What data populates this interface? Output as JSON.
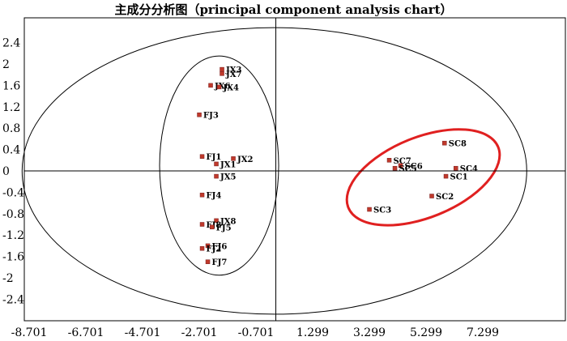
{
  "chart_data": {
    "type": "scatter",
    "title": "主成分分析图（principal component analysis chart）",
    "xlabel": "",
    "ylabel": "",
    "xlim": [
      -8.701,
      9.299
    ],
    "ylim": [
      -2.8,
      2.8
    ],
    "x_ticks": [
      "-8.701",
      "-6.701",
      "-4.701",
      "-2.701",
      "-0.701",
      "1.299",
      "3.299",
      "5.299",
      "7.299"
    ],
    "x_tick_values": [
      -8.701,
      -6.701,
      -4.701,
      -2.701,
      -0.701,
      1.299,
      3.299,
      5.299,
      7.299
    ],
    "y_ticks": [
      "2.4",
      "2",
      "1.6",
      "1.2",
      "0.8",
      "0.4",
      "0",
      "-0.4",
      "-0.8",
      "-1.2",
      "-1.6",
      "-2",
      "-2.4"
    ],
    "y_tick_values": [
      2.4,
      2.0,
      1.6,
      1.2,
      0.8,
      0.4,
      0,
      -0.4,
      -0.8,
      -1.2,
      -1.6,
      -2.0,
      -2.4
    ],
    "grid": false,
    "legend": "none",
    "marker_color": "#c0392b",
    "points": [
      {
        "label": "JX3",
        "x": -1.9,
        "y": 1.9
      },
      {
        "label": "JX7",
        "x": -1.9,
        "y": 1.82
      },
      {
        "label": "JX6",
        "x": -2.3,
        "y": 1.6
      },
      {
        "label": "JX4",
        "x": -2.0,
        "y": 1.57
      },
      {
        "label": "FJ3",
        "x": -2.7,
        "y": 1.05
      },
      {
        "label": "FJ1",
        "x": -2.6,
        "y": 0.27
      },
      {
        "label": "JX2",
        "x": -1.5,
        "y": 0.23
      },
      {
        "label": "JX1",
        "x": -2.1,
        "y": 0.13
      },
      {
        "label": "JX5",
        "x": -2.1,
        "y": -0.1
      },
      {
        "label": "FJ4",
        "x": -2.6,
        "y": -0.45
      },
      {
        "label": "JX8",
        "x": -2.1,
        "y": -0.93
      },
      {
        "label": "FJ8",
        "x": -2.6,
        "y": -1.0
      },
      {
        "label": "FJ5",
        "x": -2.25,
        "y": -1.05
      },
      {
        "label": "FJ6",
        "x": -2.4,
        "y": -1.4
      },
      {
        "label": "FJ2",
        "x": -2.6,
        "y": -1.45
      },
      {
        "label": "FJ7",
        "x": -2.4,
        "y": -1.7
      },
      {
        "label": "SC8",
        "x": 5.95,
        "y": 0.52
      },
      {
        "label": "SC7",
        "x": 4.0,
        "y": 0.2
      },
      {
        "label": "SC6",
        "x": 4.4,
        "y": 0.1
      },
      {
        "label": "SC5",
        "x": 4.2,
        "y": 0.05
      },
      {
        "label": "SC4",
        "x": 6.35,
        "y": 0.05
      },
      {
        "label": "SC1",
        "x": 6.0,
        "y": -0.1
      },
      {
        "label": "SC2",
        "x": 5.5,
        "y": -0.47
      },
      {
        "label": "SC3",
        "x": 3.3,
        "y": -0.72
      }
    ],
    "ellipses": [
      {
        "name": "confidence-ellipse",
        "cx": -0.05,
        "cy": 0.0,
        "rx": 8.9,
        "ry": 2.68,
        "color": "#000000",
        "stroke_width": 1
      },
      {
        "name": "jx-fj-group-ellipse",
        "cx": -2.0,
        "cy": 0.1,
        "rx": 2.1,
        "ry": 2.05,
        "color": "#000000",
        "stroke_width": 1
      },
      {
        "name": "sc-group-ellipse",
        "cx": 5.2,
        "cy": -0.12,
        "rx": 2.85,
        "ry": 0.75,
        "rotate": -22,
        "color": "#e02020",
        "stroke_width": 3
      }
    ]
  }
}
